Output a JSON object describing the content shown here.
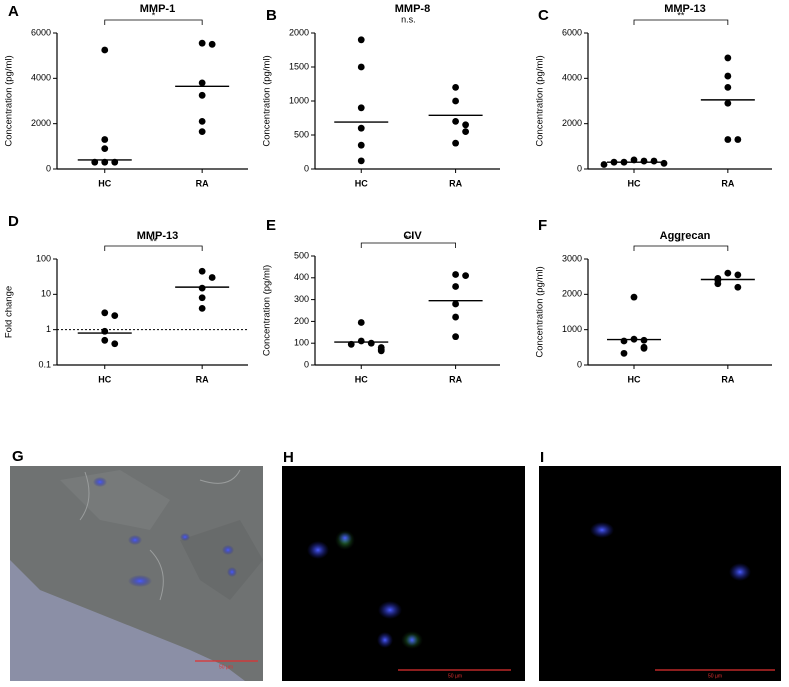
{
  "chart_data": [
    {
      "type": "dot",
      "panel": "A",
      "title": "MMP-1",
      "ylabel": "Concentration (pg/ml)",
      "categories": [
        "HC",
        "RA"
      ],
      "values": [
        [
          5250,
          1300,
          900,
          300,
          300,
          300
        ],
        [
          5550,
          5500,
          3800,
          3250,
          2100,
          1650
        ]
      ],
      "medians": [
        400,
        3650
      ],
      "ylim": [
        0,
        6000
      ],
      "yticks": [
        0,
        2000,
        4000,
        6000
      ],
      "annotation": "*"
    },
    {
      "type": "dot",
      "panel": "B",
      "title": "MMP-8",
      "ylabel": "Concentration (pg/ml)",
      "categories": [
        "HC",
        "RA"
      ],
      "values": [
        [
          1900,
          1500,
          900,
          600,
          350,
          120
        ],
        [
          1200,
          1000,
          700,
          650,
          550,
          380
        ]
      ],
      "medians": [
        690,
        790
      ],
      "ylim": [
        0,
        2000
      ],
      "yticks": [
        0,
        500,
        1000,
        1500,
        2000
      ],
      "annotation": "n.s."
    },
    {
      "type": "dot",
      "panel": "C",
      "title": "MMP-13",
      "ylabel": "Concentration (pg/ml)",
      "categories": [
        "HC",
        "RA"
      ],
      "values": [
        [
          400,
          350,
          300,
          350,
          300,
          250,
          200
        ],
        [
          4900,
          4100,
          3600,
          2900,
          1300,
          1300
        ]
      ],
      "medians": [
        300,
        3050
      ],
      "ylim": [
        0,
        6000
      ],
      "yticks": [
        0,
        2000,
        4000,
        6000
      ],
      "annotation": "**"
    },
    {
      "type": "dot",
      "panel": "D",
      "title": "MMP-13",
      "ylabel": "Fold change",
      "categories": [
        "HC",
        "RA"
      ],
      "values": [
        [
          3,
          2.5,
          0.9,
          0.5,
          0.4
        ],
        [
          45,
          30,
          15,
          8,
          4
        ]
      ],
      "medians": [
        0.8,
        16
      ],
      "log_scale": true,
      "reference_line": 1,
      "ylim": [
        0.1,
        100
      ],
      "yticks": [
        0.1,
        1,
        10,
        100
      ],
      "annotation": "**"
    },
    {
      "type": "dot",
      "panel": "E",
      "title": "CIV",
      "ylabel": "Concentration (pg/ml)",
      "categories": [
        "HC",
        "RA"
      ],
      "values": [
        [
          195,
          110,
          100,
          95,
          80,
          70,
          65
        ],
        [
          415,
          410,
          360,
          280,
          220,
          130
        ]
      ],
      "medians": [
        105,
        295
      ],
      "ylim": [
        0,
        500
      ],
      "yticks": [
        0,
        100,
        200,
        300,
        400,
        500
      ],
      "annotation": "**"
    },
    {
      "type": "dot",
      "panel": "F",
      "title": "Aggrecan",
      "ylabel": "Concentration (pg/ml)",
      "categories": [
        "HC",
        "RA"
      ],
      "values": [
        [
          1920,
          730,
          700,
          680,
          500,
          470,
          330
        ],
        [
          2600,
          2550,
          2450,
          2400,
          2300,
          2200
        ]
      ],
      "medians": [
        720,
        2420
      ],
      "ylim": [
        0,
        3000
      ],
      "yticks": [
        0,
        1000,
        2000,
        3000
      ],
      "annotation": "**"
    }
  ],
  "images": [
    {
      "panel": "G",
      "scale_bar": "50 µm"
    },
    {
      "panel": "H",
      "scale_bar": "50 µm"
    },
    {
      "panel": "I",
      "scale_bar": "50 µm"
    }
  ]
}
